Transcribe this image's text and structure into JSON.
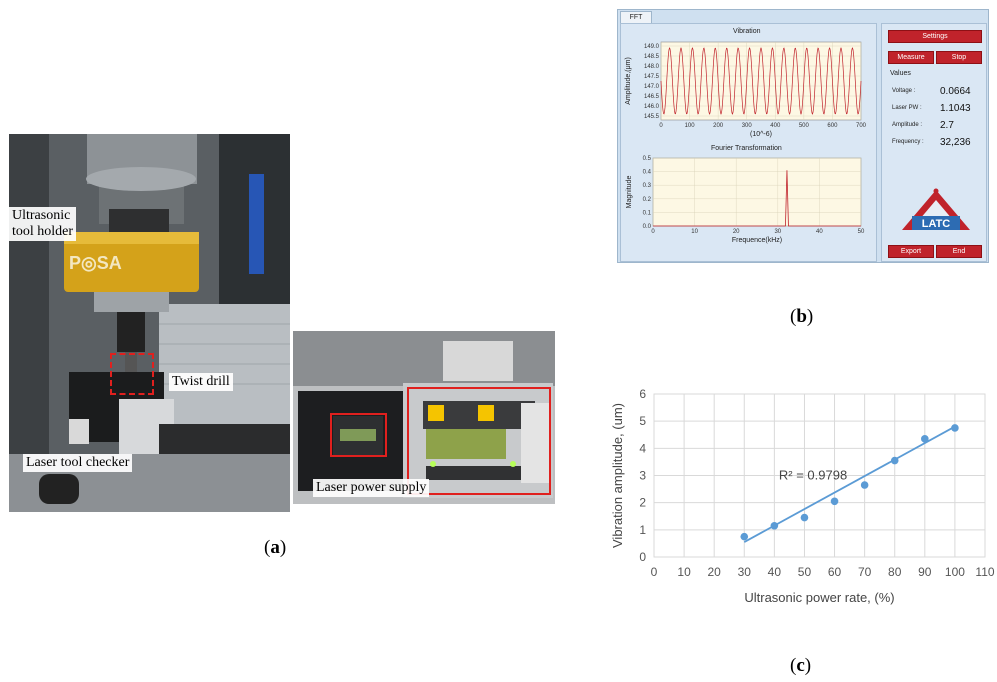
{
  "panel_a": {
    "labels": {
      "tool_holder_line1": "Ultrasonic",
      "tool_holder_line2": "tool holder",
      "twist_drill": "Twist drill",
      "laser_tool_checker": "Laser tool checker",
      "laser_power_supply": "Laser power supply"
    },
    "caption_open": "(",
    "caption_letter": "a",
    "caption_close": ")"
  },
  "panel_b": {
    "tab": "FFT",
    "vibration_title": "Vibration",
    "vibration_ylabel": "Amplitude,(μm)",
    "vibration_xlabel": "(10^-6)",
    "vibration_yticks": [
      "149.0",
      "148.5",
      "148.0",
      "147.5",
      "147.0",
      "146.5",
      "146.0",
      "145.5"
    ],
    "vibration_xticks": [
      "0",
      "100",
      "200",
      "300",
      "400",
      "500",
      "600",
      "700"
    ],
    "fourier_title": "Fourier Transformation",
    "fourier_ylabel": "Magnitude",
    "fourier_xlabel": "Frequence(kHz)",
    "fourier_yticks": [
      "0.5",
      "0.4",
      "0.3",
      "0.2",
      "0.1",
      "0.0"
    ],
    "fourier_xticks": [
      "0",
      "10",
      "20",
      "30",
      "40",
      "50"
    ],
    "buttons": {
      "settings": "Settings",
      "measure": "Measure",
      "stop": "Stop",
      "export": "Export",
      "end": "End"
    },
    "values_heading": "Values",
    "values": [
      {
        "label": "Voltage :",
        "value": "0.0664"
      },
      {
        "label": "Laser PW :",
        "value": "1.1043"
      },
      {
        "label": "Amplitude :",
        "value": "2.7"
      },
      {
        "label": "Frequency :",
        "value": "32,236"
      }
    ],
    "logo_text": "LATC",
    "caption_open": "(",
    "caption_letter": "b",
    "caption_close": ")"
  },
  "panel_c": {
    "caption_open": "(",
    "caption_letter": "c",
    "caption_close": ")"
  },
  "chart_data": {
    "type": "scatter",
    "x": [
      30,
      40,
      50,
      60,
      70,
      80,
      90,
      100
    ],
    "y": [
      0.75,
      1.15,
      1.45,
      2.05,
      2.65,
      3.55,
      4.35,
      4.75
    ],
    "trendline": {
      "x": [
        30,
        100
      ],
      "y": [
        0.55,
        4.8
      ]
    },
    "annotation": "R² = 0.9798",
    "xlabel": "Ultrasonic power rate, (%)",
    "ylabel": "Vibration amplitude, (um)",
    "xlim": [
      0,
      110
    ],
    "ylim": [
      0,
      6
    ],
    "xticks": [
      "0",
      "10",
      "20",
      "30",
      "40",
      "50",
      "60",
      "70",
      "80",
      "90",
      "100",
      "110"
    ],
    "yticks": [
      "0",
      "1",
      "2",
      "3",
      "4",
      "5",
      "6"
    ],
    "grid": true,
    "color": "#5b9bd5"
  }
}
